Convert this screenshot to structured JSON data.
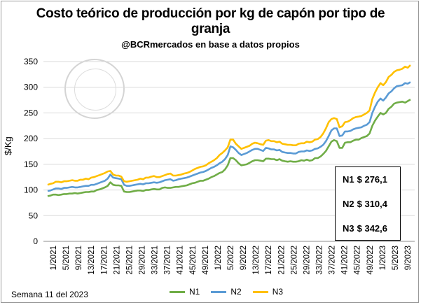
{
  "chart_data": {
    "type": "line",
    "title_line1": "Costo teórico de producción por kg de capón por tipo de",
    "title_line2": "granja",
    "subtitle": "@BCRmercados en base a datos propios",
    "ylabel": "$/Kg",
    "xlabel": "",
    "ylim": [
      0,
      350
    ],
    "yticks": [
      0,
      50,
      100,
      150,
      200,
      250,
      300,
      350
    ],
    "grid": true,
    "legend_position": "bottom",
    "x_tick_labels": [
      "1/2021",
      "5/2021",
      "9/2021",
      "13/2021",
      "17/2021",
      "21/2021",
      "25/2021",
      "29/2021",
      "33/2021",
      "37/2021",
      "41/2021",
      "45/2021",
      "49/2021",
      "1/2022",
      "5/2022",
      "9/2022",
      "13/2022",
      "17/2022",
      "21/2022",
      "25/2022",
      "29/2022",
      "33/2022",
      "37/2022",
      "41/2022",
      "45/2022",
      "49/2022",
      "1/2023",
      "5/2023",
      "9/2023"
    ],
    "series": [
      {
        "name": "N1",
        "color": "#70ad47",
        "values": [
          88,
          89,
          91,
          91,
          90,
          91,
          92,
          92,
          93,
          93,
          94,
          93,
          94,
          95,
          96,
          96,
          97,
          97,
          100,
          101,
          103,
          105,
          108,
          115,
          110,
          109,
          109,
          108,
          97,
          96,
          96,
          97,
          98,
          99,
          99,
          98,
          100,
          100,
          101,
          102,
          101,
          101,
          104,
          105,
          104,
          104,
          105,
          106,
          106,
          107,
          108,
          109,
          111,
          113,
          114,
          116,
          118,
          118,
          120,
          122,
          125,
          127,
          130,
          133,
          135,
          140,
          148,
          162,
          162,
          158,
          152,
          148,
          149,
          150,
          153,
          156,
          158,
          158,
          157,
          156,
          161,
          161,
          160,
          160,
          158,
          160,
          157,
          156,
          155,
          156,
          155,
          155,
          156,
          158,
          157,
          159,
          157,
          158,
          162,
          162,
          165,
          170,
          176,
          185,
          194,
          197,
          195,
          182,
          182,
          192,
          193,
          193,
          196,
          198,
          198,
          201,
          203,
          205,
          210,
          225,
          235,
          243,
          250,
          247,
          250,
          258,
          262,
          268,
          270,
          271,
          272,
          270,
          273,
          276
        ]
      },
      {
        "name": "N2",
        "color": "#5b9bd5",
        "values": [
          98,
          99,
          101,
          103,
          103,
          102,
          104,
          104,
          105,
          106,
          105,
          105,
          106,
          107,
          108,
          108,
          110,
          110,
          112,
          114,
          116,
          118,
          122,
          130,
          124,
          123,
          122,
          121,
          110,
          108,
          108,
          109,
          110,
          111,
          112,
          111,
          113,
          113,
          114,
          115,
          114,
          115,
          117,
          119,
          120,
          121,
          118,
          119,
          121,
          122,
          123,
          124,
          126,
          128,
          130,
          132,
          134,
          135,
          137,
          140,
          143,
          145,
          148,
          152,
          155,
          160,
          168,
          185,
          183,
          178,
          172,
          168,
          170,
          172,
          175,
          178,
          180,
          180,
          178,
          176,
          182,
          181,
          179,
          179,
          177,
          178,
          174,
          173,
          172,
          172,
          171,
          171,
          174,
          175,
          175,
          177,
          176,
          177,
          180,
          181,
          184,
          188,
          195,
          205,
          216,
          220,
          220,
          205,
          206,
          214,
          214,
          215,
          218,
          220,
          221,
          222,
          225,
          227,
          232,
          250,
          262,
          272,
          278,
          274,
          280,
          288,
          292,
          298,
          302,
          303,
          304,
          308,
          307,
          310
        ]
      },
      {
        "name": "N3",
        "color": "#ffc000",
        "values": [
          110,
          112,
          113,
          116,
          116,
          115,
          117,
          117,
          118,
          119,
          118,
          118,
          120,
          120,
          122,
          121,
          124,
          125,
          127,
          129,
          131,
          133,
          136,
          137,
          130,
          128,
          128,
          126,
          117,
          116,
          117,
          118,
          119,
          120,
          122,
          121,
          124,
          124,
          126,
          127,
          125,
          125,
          127,
          129,
          131,
          132,
          128,
          128,
          129,
          130,
          132,
          133,
          135,
          138,
          141,
          143,
          145,
          146,
          148,
          152,
          155,
          158,
          162,
          168,
          172,
          177,
          183,
          198,
          198,
          190,
          185,
          180,
          182,
          184,
          186,
          190,
          192,
          191,
          189,
          188,
          196,
          197,
          195,
          195,
          193,
          194,
          190,
          189,
          188,
          188,
          187,
          187,
          190,
          191,
          191,
          194,
          193,
          194,
          198,
          199,
          203,
          210,
          220,
          232,
          238,
          240,
          238,
          222,
          224,
          232,
          233,
          236,
          240,
          242,
          243,
          244,
          247,
          250,
          255,
          277,
          290,
          300,
          308,
          304,
          310,
          320,
          324,
          330,
          333,
          334,
          336,
          340,
          338,
          343
        ]
      }
    ]
  },
  "value_box": {
    "rows": [
      {
        "label": "N1",
        "value": "$ 276,1"
      },
      {
        "label": "N2",
        "value": "$ 310,4"
      },
      {
        "label": "N3",
        "value": "$ 342,6"
      }
    ]
  },
  "footer": "Semana 11 del 2023"
}
